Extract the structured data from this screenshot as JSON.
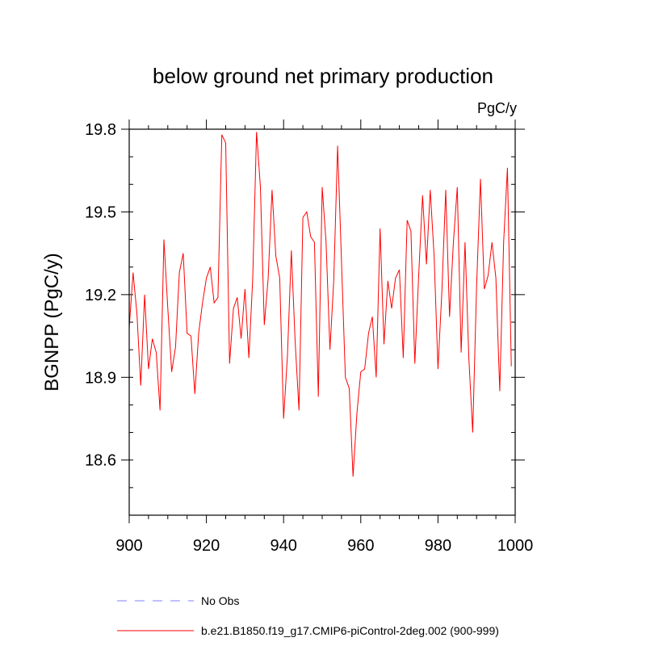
{
  "chart_data": {
    "type": "line",
    "title": "below ground net primary production",
    "units_label": "PgC/y",
    "ylabel": "BGNPP  (PgC/y)",
    "xlabel": "",
    "xlim": [
      900,
      1000
    ],
    "ylim": [
      18.4,
      19.8
    ],
    "xticks": [
      900,
      920,
      940,
      960,
      980,
      1000
    ],
    "yticks": [
      18.6,
      18.9,
      19.2,
      19.5,
      19.8
    ],
    "ytick_labels": [
      "18.6",
      "18.9",
      "19.2",
      "19.5",
      "19.8"
    ],
    "grid": false,
    "legend_position": "bottom",
    "legend": [
      {
        "name": "No Obs",
        "color": "#8080ff",
        "style": "dashed"
      },
      {
        "name": "b.e21.B1850.f19_g17.CMIP6-piControl-2deg.002 (900-999)",
        "color": "#ff0000",
        "style": "solid"
      }
    ],
    "series": [
      {
        "name": "b.e21.B1850.f19_g17.CMIP6-piControl-2deg.002 (900-999)",
        "color": "#ff0000",
        "x_start": 900,
        "values": [
          19.08,
          19.28,
          19.13,
          18.87,
          19.2,
          18.93,
          19.04,
          18.99,
          18.78,
          19.4,
          19.15,
          18.92,
          19.01,
          19.28,
          19.35,
          19.06,
          19.05,
          18.84,
          19.06,
          19.17,
          19.26,
          19.3,
          19.17,
          19.19,
          19.78,
          19.75,
          18.95,
          19.15,
          19.19,
          19.04,
          19.22,
          18.97,
          19.26,
          19.79,
          19.59,
          19.09,
          19.26,
          19.58,
          19.34,
          19.26,
          18.75,
          18.98,
          19.36,
          19.03,
          18.78,
          19.48,
          19.5,
          19.41,
          19.39,
          18.83,
          19.59,
          19.39,
          19.0,
          19.25,
          19.74,
          19.32,
          18.9,
          18.86,
          18.54,
          18.77,
          18.92,
          18.93,
          19.06,
          19.12,
          18.9,
          19.44,
          19.02,
          19.25,
          19.15,
          19.26,
          19.29,
          18.97,
          19.47,
          19.43,
          18.95,
          19.27,
          19.56,
          19.31,
          19.58,
          19.34,
          18.93,
          19.21,
          19.58,
          19.12,
          19.39,
          19.59,
          18.99,
          19.39,
          18.97,
          18.7,
          19.23,
          19.62,
          19.22,
          19.27,
          19.39,
          19.26,
          18.85,
          19.39,
          19.66,
          18.94
        ]
      }
    ]
  }
}
